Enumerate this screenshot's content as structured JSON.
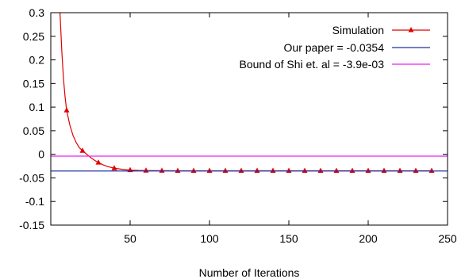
{
  "chart_data": {
    "type": "line",
    "title": "",
    "xlabel": "Number of Iterations",
    "ylabel": "",
    "xlim": [
      0,
      250
    ],
    "ylim": [
      -0.15,
      0.3
    ],
    "xticks": [
      50,
      100,
      150,
      200,
      250
    ],
    "xtick_labels": [
      "50",
      "100",
      "150",
      "200",
      "250"
    ],
    "yticks": [
      -0.15,
      -0.1,
      -0.05,
      0,
      0.05,
      0.1,
      0.15,
      0.2,
      0.25,
      0.3
    ],
    "ytick_labels": [
      "-0.15",
      "-0.1",
      "-0.05",
      "0",
      "0.05",
      "0.1",
      "0.15",
      "0.2",
      "0.25",
      "0.3"
    ],
    "grid": false,
    "legend_position": "top-right",
    "series": [
      {
        "name": "Simulation",
        "kind": "curve",
        "color": "#e00000",
        "marker": "triangle",
        "x": [
          10,
          20,
          30,
          40,
          50,
          60,
          70,
          80,
          90,
          100,
          110,
          120,
          130,
          140,
          150,
          160,
          170,
          180,
          190,
          200,
          210,
          220,
          230,
          240
        ],
        "y": [
          0.093,
          0.0075,
          -0.0175,
          -0.0295,
          -0.0335,
          -0.0345,
          -0.0348,
          -0.035,
          -0.035,
          -0.035,
          -0.035,
          -0.035,
          -0.035,
          -0.035,
          -0.035,
          -0.035,
          -0.035,
          -0.035,
          -0.035,
          -0.035,
          -0.035,
          -0.035,
          -0.035,
          -0.035
        ],
        "leading_curve_x": [
          5.8,
          7,
          8,
          9,
          10,
          12,
          14,
          16,
          18,
          20,
          22.5,
          25,
          27.5,
          30,
          33,
          36,
          40,
          45,
          50,
          55,
          60,
          70,
          80,
          90,
          100,
          120,
          140,
          160,
          180,
          200,
          220,
          240
        ],
        "leading_curve_y": [
          0.3,
          0.215,
          0.16,
          0.122,
          0.093,
          0.062,
          0.04,
          0.025,
          0.014,
          0.0075,
          0.0005,
          -0.0065,
          -0.0125,
          -0.0175,
          -0.0225,
          -0.026,
          -0.0295,
          -0.0318,
          -0.0335,
          -0.0342,
          -0.0345,
          -0.0348,
          -0.035,
          -0.035,
          -0.035,
          -0.035,
          -0.035,
          -0.035,
          -0.035,
          -0.035,
          -0.035,
          -0.035
        ]
      },
      {
        "name": "Our paper = -0.0354",
        "kind": "hline",
        "color": "#2233a0",
        "y": -0.0354
      },
      {
        "name": "Bound of Shi et. al = -3.9e-03",
        "kind": "hline",
        "color": "#ee22ee",
        "y": -0.0039
      }
    ]
  }
}
